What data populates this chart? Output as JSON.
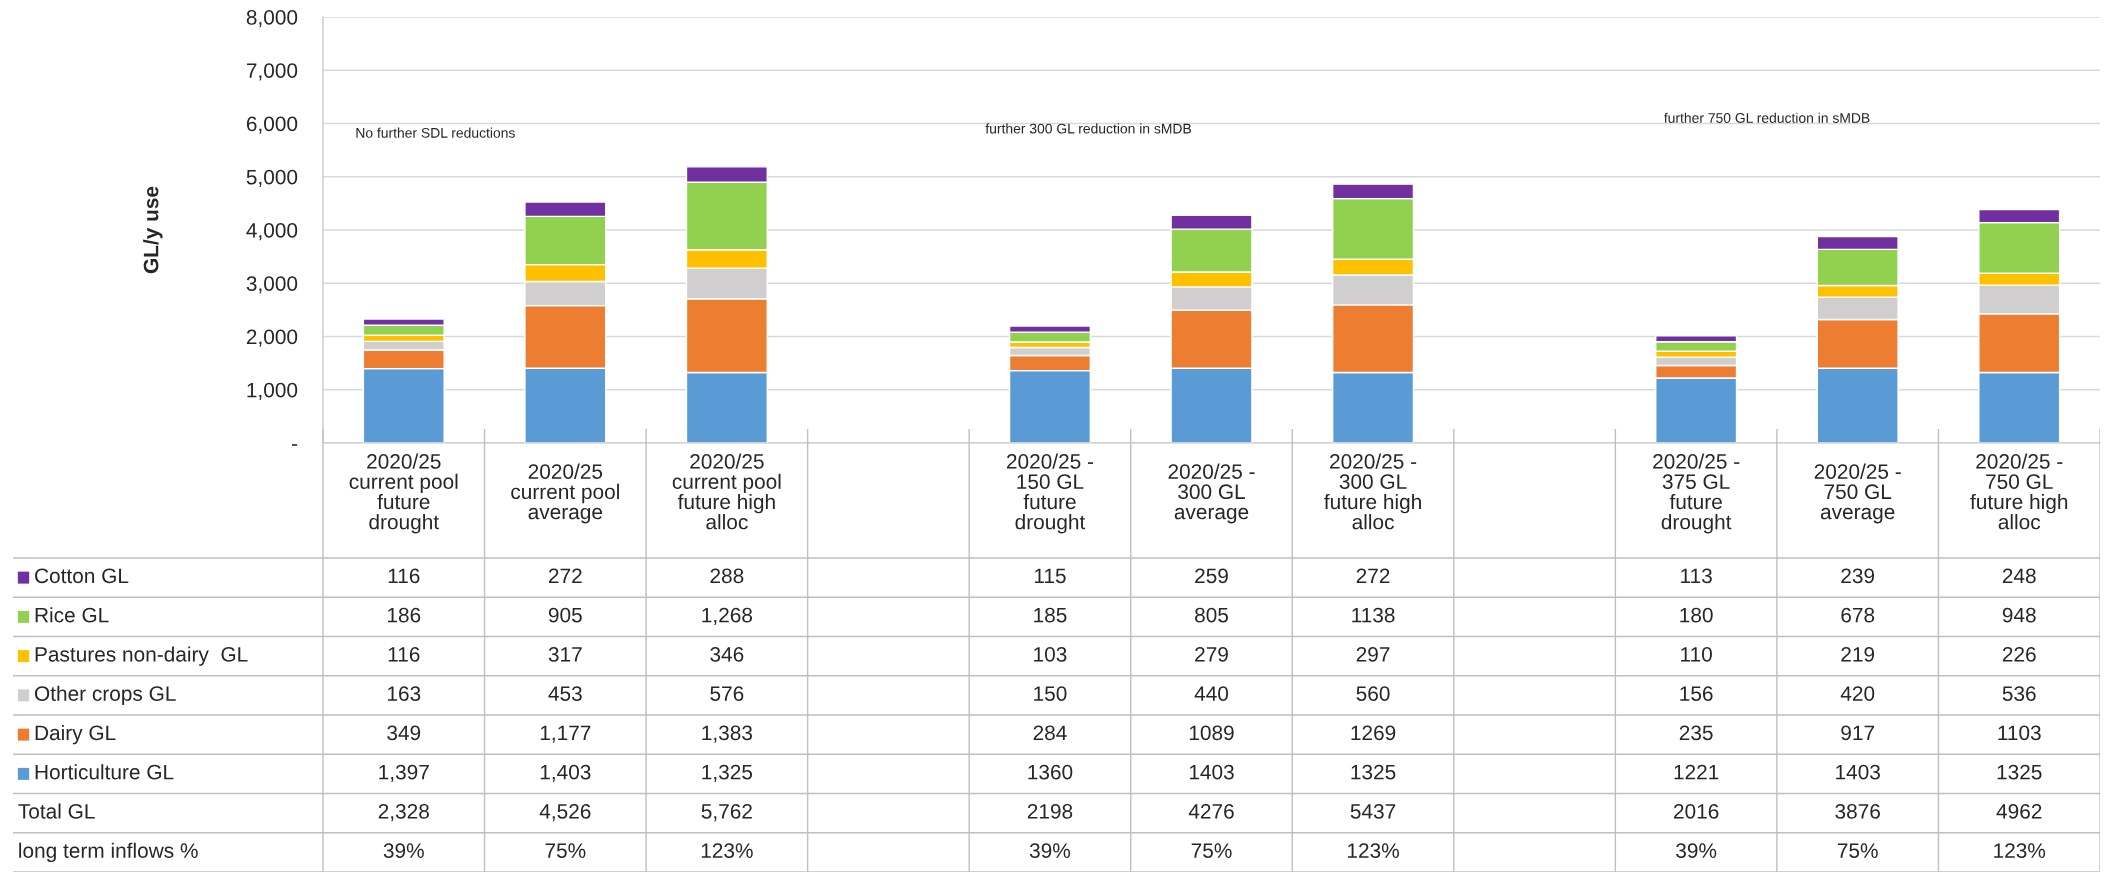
{
  "chart_data": {
    "type": "bar",
    "stacked": true,
    "ylabel": "GL/y use",
    "categories": [
      "2020/25\ncurrent pool\nfuture\ndrought",
      "2020/25\ncurrent pool\naverage",
      "2020/25\ncurrent pool\nfuture high\nalloc",
      null,
      "2020/25 -\n150 GL\nfuture\ndrought",
      "2020/25 -\n300 GL\naverage",
      "2020/25 -\n300 GL\nfuture high\nalloc",
      null,
      "2020/25 -\n375 GL\nfuture\ndrought",
      "2020/25 -\n750 GL\naverage",
      "2020/25 -\n750 GL\nfuture high\nalloc"
    ],
    "series": [
      {
        "name": "Horticulture GL",
        "color": "#5b9bd5",
        "values": [
          1397,
          1403,
          1325,
          null,
          1360,
          1403,
          1325,
          null,
          1221,
          1403,
          1325
        ],
        "value_labels": [
          "1,397",
          "1,403",
          "1,325",
          null,
          "1360",
          "1403",
          "1325",
          null,
          "1221",
          "1403",
          "1325"
        ]
      },
      {
        "name": "Dairy GL",
        "color": "#ed7d31",
        "values": [
          349,
          1177,
          1383,
          null,
          284,
          1089,
          1269,
          null,
          235,
          917,
          1103
        ],
        "value_labels": [
          "349",
          "1,177",
          "1,383",
          null,
          "284",
          "1089",
          "1269",
          null,
          "235",
          "917",
          "1103"
        ]
      },
      {
        "name": "Other crops GL",
        "color": "#d0cece",
        "values": [
          163,
          453,
          576,
          null,
          150,
          440,
          560,
          null,
          156,
          420,
          536
        ],
        "value_labels": [
          "163",
          "453",
          "576",
          null,
          "150",
          "440",
          "560",
          null,
          "156",
          "420",
          "536"
        ]
      },
      {
        "name": "Pastures non-dairy  GL",
        "color": "#ffc000",
        "values": [
          116,
          317,
          346,
          null,
          103,
          279,
          297,
          null,
          110,
          219,
          226
        ],
        "value_labels": [
          "116",
          "317",
          "346",
          null,
          "103",
          "279",
          "297",
          null,
          "110",
          "219",
          "226"
        ]
      },
      {
        "name": "Rice GL",
        "color": "#92d050",
        "values": [
          186,
          905,
          1268,
          null,
          185,
          805,
          1138,
          null,
          180,
          678,
          948
        ],
        "value_labels": [
          "186",
          "905",
          "1,268",
          null,
          "185",
          "805",
          "1138",
          null,
          "180",
          "678",
          "948"
        ]
      },
      {
        "name": "Cotton GL",
        "color": "#7030a0",
        "values": [
          116,
          272,
          288,
          null,
          115,
          259,
          272,
          null,
          113,
          239,
          248
        ],
        "value_labels": [
          "116",
          "272",
          "288",
          null,
          "115",
          "259",
          "272",
          null,
          "113",
          "239",
          "248"
        ]
      }
    ],
    "legend": "bottom left",
    "annotations": [
      "No further SDL reductions",
      "further 300 GL reduction in sMDB",
      "further 750 GL reduction in sMDB",
      "Total GL",
      "2,328",
      "4,526",
      "5,762",
      "2198",
      "4276",
      "5437",
      "2016",
      "3876",
      "4962",
      "long term inflows %",
      "39%",
      "75%",
      "123%",
      "39%",
      "75%",
      "123%",
      "39%",
      "75%",
      "123%"
    ],
    "ylim": [
      0,
      8000
    ],
    "yticks": [
      {
        "value": 0,
        "label": "-"
      },
      {
        "value": 1000,
        "label": "1,000"
      },
      {
        "value": 2000,
        "label": "2,000"
      },
      {
        "value": 3000,
        "label": "3,000"
      },
      {
        "value": 4000,
        "label": "4,000"
      },
      {
        "value": 5000,
        "label": "5,000"
      },
      {
        "value": 6000,
        "label": "6,000"
      },
      {
        "value": 7000,
        "label": "7,000"
      },
      {
        "value": 8000,
        "label": "8,000"
      }
    ],
    "grid": "y"
  }
}
